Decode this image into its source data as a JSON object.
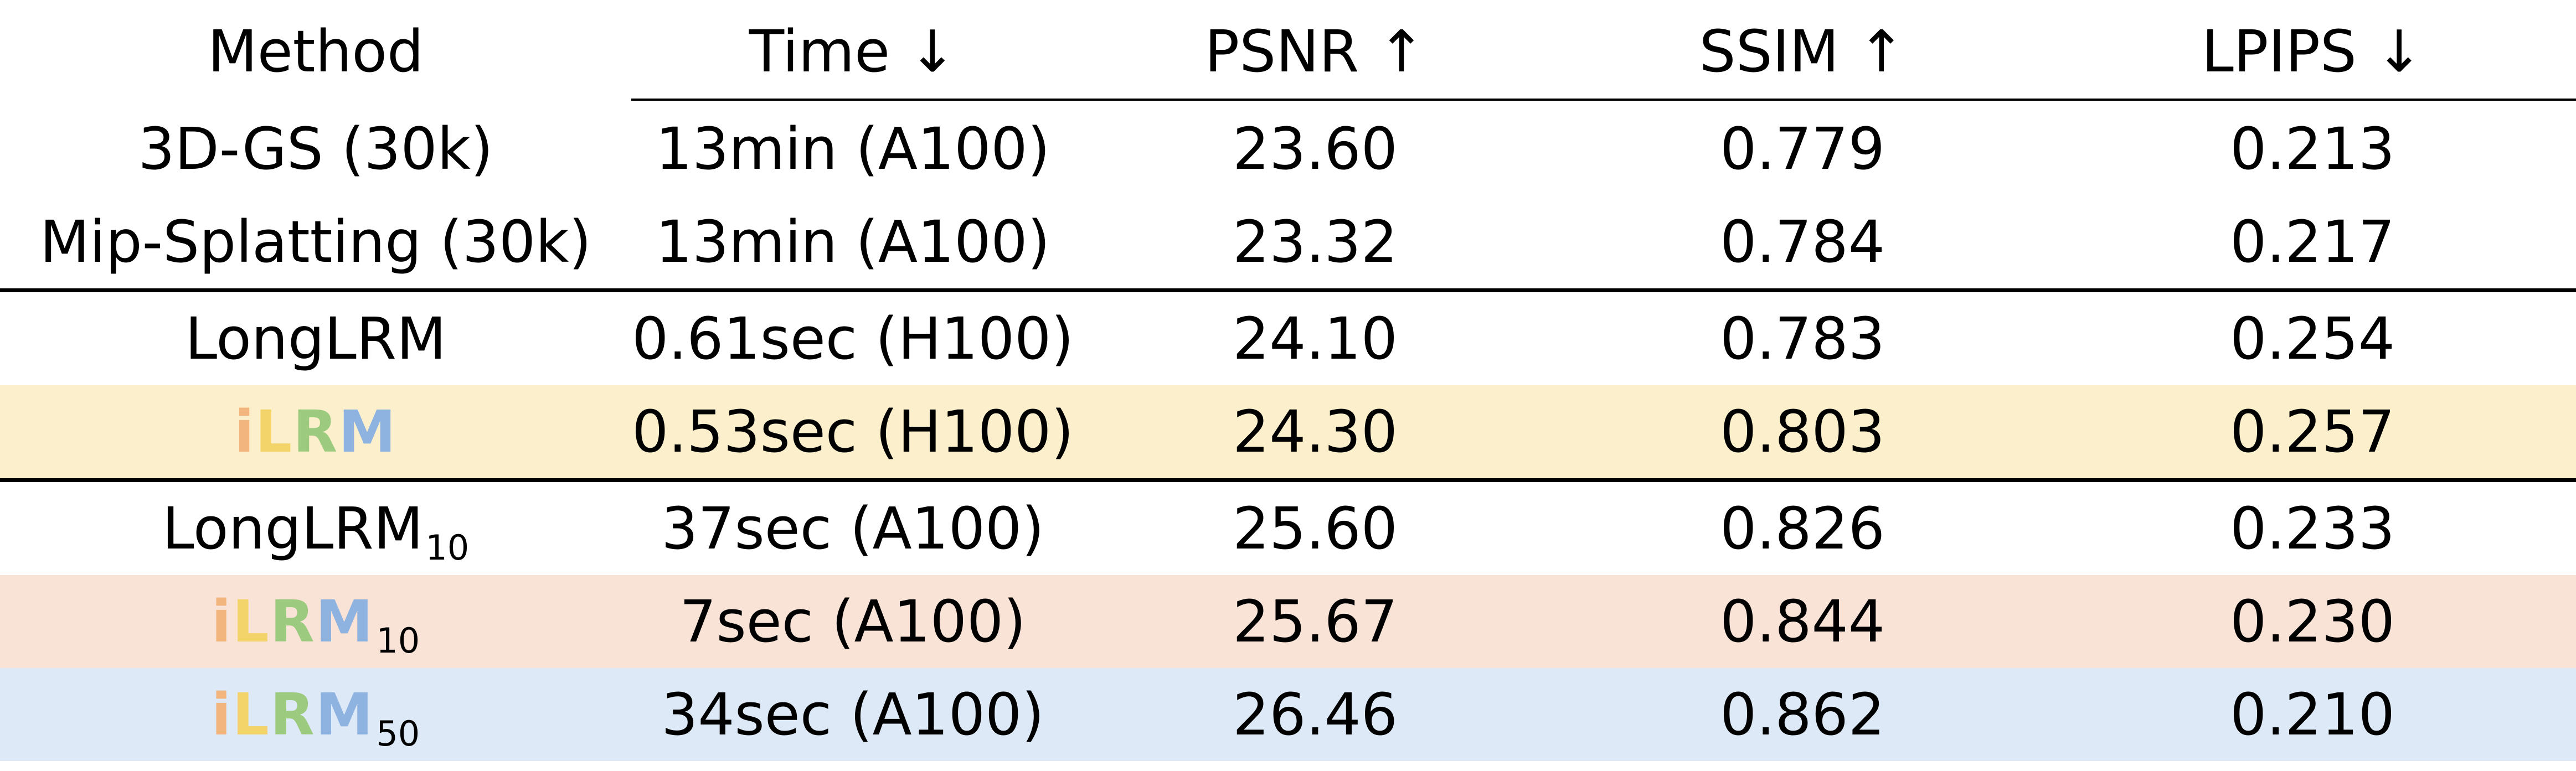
{
  "chart_data": {
    "type": "table",
    "columns": [
      "Method",
      "Time ↓",
      "PSNR ↑",
      "SSIM ↑",
      "LPIPS ↓"
    ],
    "rows": [
      {
        "method": "3D-GS (30k)",
        "time": "13min (A100)",
        "psnr": "23.60",
        "ssim": "0.779",
        "lpips": "0.213"
      },
      {
        "method": "Mip-Splatting (30k)",
        "time": "13min (A100)",
        "psnr": "23.32",
        "ssim": "0.784",
        "lpips": "0.217"
      },
      {
        "method": "LongLRM",
        "time": "0.61sec (H100)",
        "psnr": "24.10",
        "ssim": "0.783",
        "lpips": "0.254"
      },
      {
        "method": "iLRM",
        "time": "0.53sec (H100)",
        "psnr": "24.30",
        "ssim": "0.803",
        "lpips": "0.257",
        "highlight": "#fcf0cc"
      },
      {
        "method": "LongLRM",
        "method_sub": "10",
        "time": "37sec (A100)",
        "psnr": "25.60",
        "ssim": "0.826",
        "lpips": "0.233"
      },
      {
        "method": "iLRM",
        "method_sub": "10",
        "time": "7sec (A100)",
        "psnr": "25.67",
        "ssim": "0.844",
        "lpips": "0.230",
        "highlight": "#f9e3d7"
      },
      {
        "method": "iLRM",
        "method_sub": "50",
        "time": "34sec (A100)",
        "psnr": "26.46",
        "ssim": "0.862",
        "lpips": "0.210",
        "highlight": "#dde9f6"
      }
    ]
  },
  "brand": {
    "letters": [
      {
        "char": "i",
        "color": "#f2b57e"
      },
      {
        "char": "L",
        "color": "#f3d46b"
      },
      {
        "char": "R",
        "color": "#9cca7e"
      },
      {
        "char": "M",
        "color": "#8fb3e0"
      }
    ]
  },
  "colors": {
    "highlight_yellow": "#fcf0cc",
    "highlight_pink": "#f9e3d7",
    "highlight_blue": "#dde9f6"
  }
}
